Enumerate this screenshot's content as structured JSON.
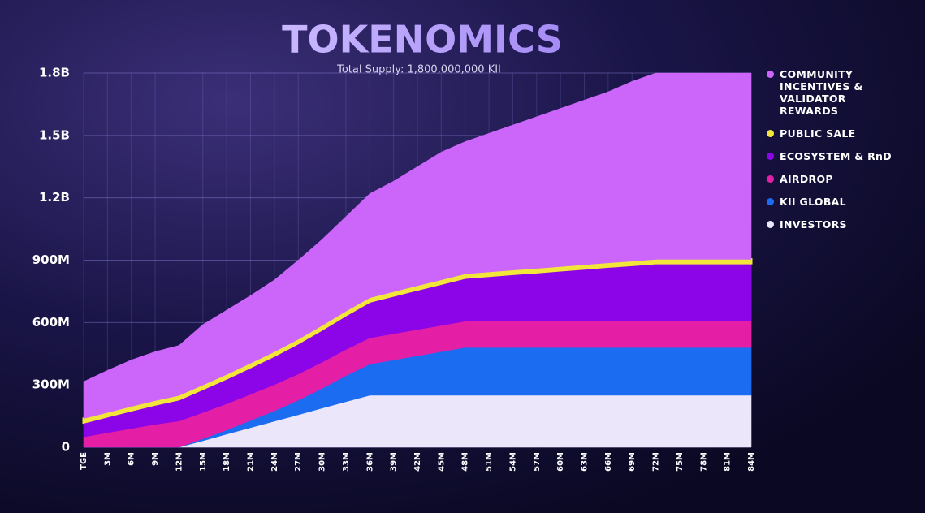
{
  "chart_data": {
    "type": "stacked-area",
    "title": "TOKENOMICS",
    "subtitle": "Total Supply: 1,800,000,000 KII",
    "categories": [
      "TGE",
      "3M",
      "6M",
      "9M",
      "12M",
      "15M",
      "18M",
      "21M",
      "24M",
      "27M",
      "30M",
      "33M",
      "36M",
      "39M",
      "42M",
      "45M",
      "48M",
      "51M",
      "54M",
      "57M",
      "60M",
      "63M",
      "66M",
      "69M",
      "72M",
      "75M",
      "78M",
      "81M",
      "84M"
    ],
    "series": [
      {
        "name": "INVESTORS",
        "color": "#ebe6fa",
        "values": [
          0,
          0,
          0,
          0,
          0,
          31,
          63,
          94,
          125,
          156,
          188,
          219,
          250,
          250,
          250,
          250,
          250,
          250,
          250,
          250,
          250,
          250,
          250,
          250,
          250,
          250,
          250,
          250,
          250
        ]
      },
      {
        "name": "KII GLOBAL",
        "color": "#1c6cf2",
        "values": [
          0,
          0,
          0,
          0,
          0,
          10,
          20,
          35,
          50,
          70,
          95,
          125,
          150,
          170,
          190,
          210,
          230,
          230,
          230,
          230,
          230,
          230,
          230,
          230,
          230,
          230,
          230,
          230,
          230
        ]
      },
      {
        "name": "AIRDROP",
        "color": "#e41fa6",
        "values": [
          50,
          70,
          90,
          110,
          126,
          126,
          126,
          126,
          126,
          126,
          126,
          126,
          126,
          126,
          126,
          126,
          126,
          126,
          126,
          126,
          126,
          126,
          126,
          126,
          126,
          126,
          126,
          126,
          126
        ]
      },
      {
        "name": "ECOSYSTEM & RnD",
        "color": "#8b05e8",
        "values": [
          70,
          79,
          88,
          96,
          105,
          114,
          123,
          131,
          140,
          149,
          158,
          166,
          175,
          184,
          193,
          201,
          210,
          219,
          228,
          236,
          245,
          254,
          263,
          271,
          280,
          280,
          280,
          280,
          280
        ]
      },
      {
        "name": "PUBLIC SALE",
        "color": "#f2e63a",
        "values": [
          18,
          18,
          18,
          18,
          18,
          18,
          18,
          18,
          18,
          18,
          18,
          18,
          18,
          18,
          18,
          18,
          18,
          18,
          18,
          18,
          18,
          18,
          18,
          18,
          18,
          18,
          18,
          18,
          18
        ]
      },
      {
        "name": "COMMUNITY INCENTIVES & VALIDATOR REWARDS",
        "color": "#cc66fa",
        "values": [
          178,
          203,
          224,
          236,
          241,
          291,
          310,
          326,
          346,
          381,
          415,
          456,
          501,
          532,
          573,
          615,
          636,
          667,
          698,
          730,
          761,
          792,
          823,
          865,
          896,
          896,
          896,
          896,
          896
        ]
      }
    ],
    "ylim": [
      0,
      1800
    ],
    "yticks": [
      0,
      {
        "value": 300,
        "label": "300M"
      },
      {
        "value": 600,
        "label": "600M"
      },
      {
        "value": 900,
        "label": "900M"
      },
      {
        "value": 1200,
        "label": "1.2B"
      },
      {
        "value": 1500,
        "label": "1.5B"
      },
      {
        "value": 1800,
        "label": "1.8B"
      }
    ],
    "grid": true
  }
}
